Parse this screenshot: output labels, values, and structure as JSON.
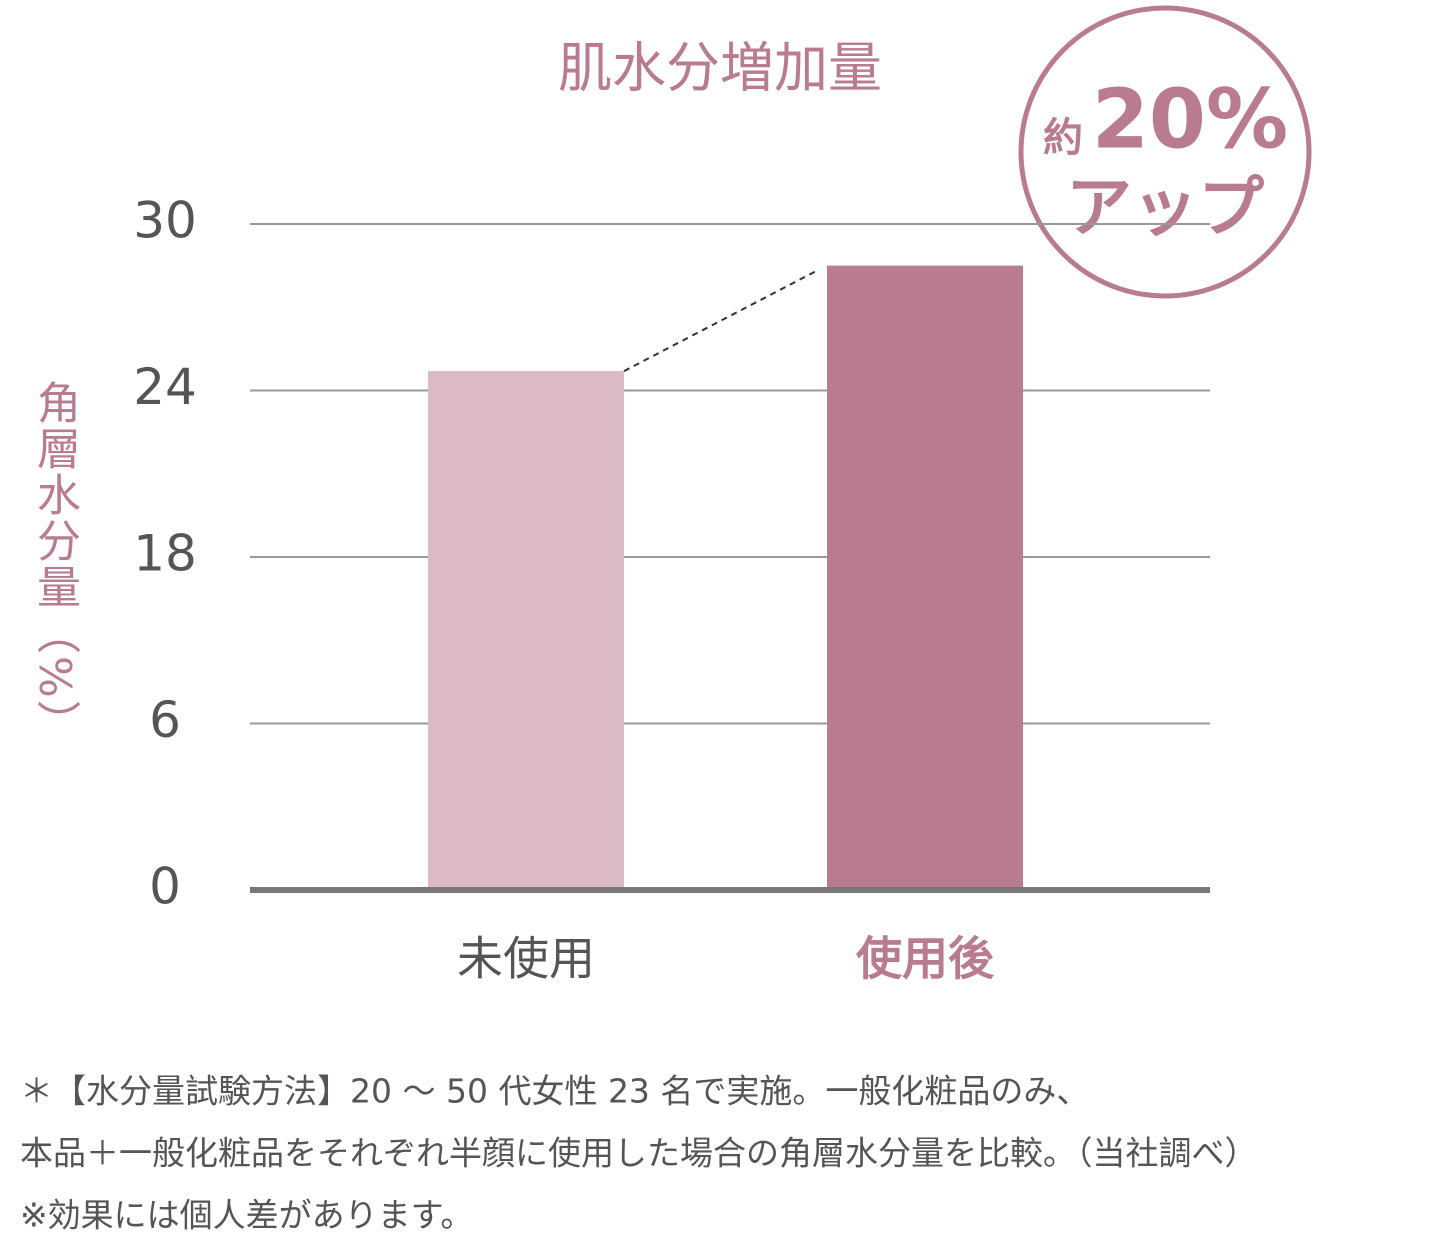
{
  "chart_data": {
    "type": "bar",
    "title": "肌水分増加量",
    "y_label": "角層水分量（%）",
    "categories": [
      "未使用",
      "使用後"
    ],
    "values": [
      24.7,
      28.5
    ],
    "colors": [
      "#dbbac5",
      "#b87b8f"
    ],
    "ylim": [
      0,
      30
    ],
    "yticks": [
      0,
      6,
      18,
      24,
      30
    ],
    "grid": true,
    "badge": {
      "prefix": "約",
      "value": "20%",
      "text": "アップ"
    },
    "notes": [
      "＊【水分量試験方法】20 ～ 50 代女性 23 名で実施。一般化粧品のみ、",
      "本品＋一般化粧品をそれぞれ半顔に使用した場合の角層水分量を比較。（当社調べ）",
      "※効果には個人差があります。"
    ]
  }
}
